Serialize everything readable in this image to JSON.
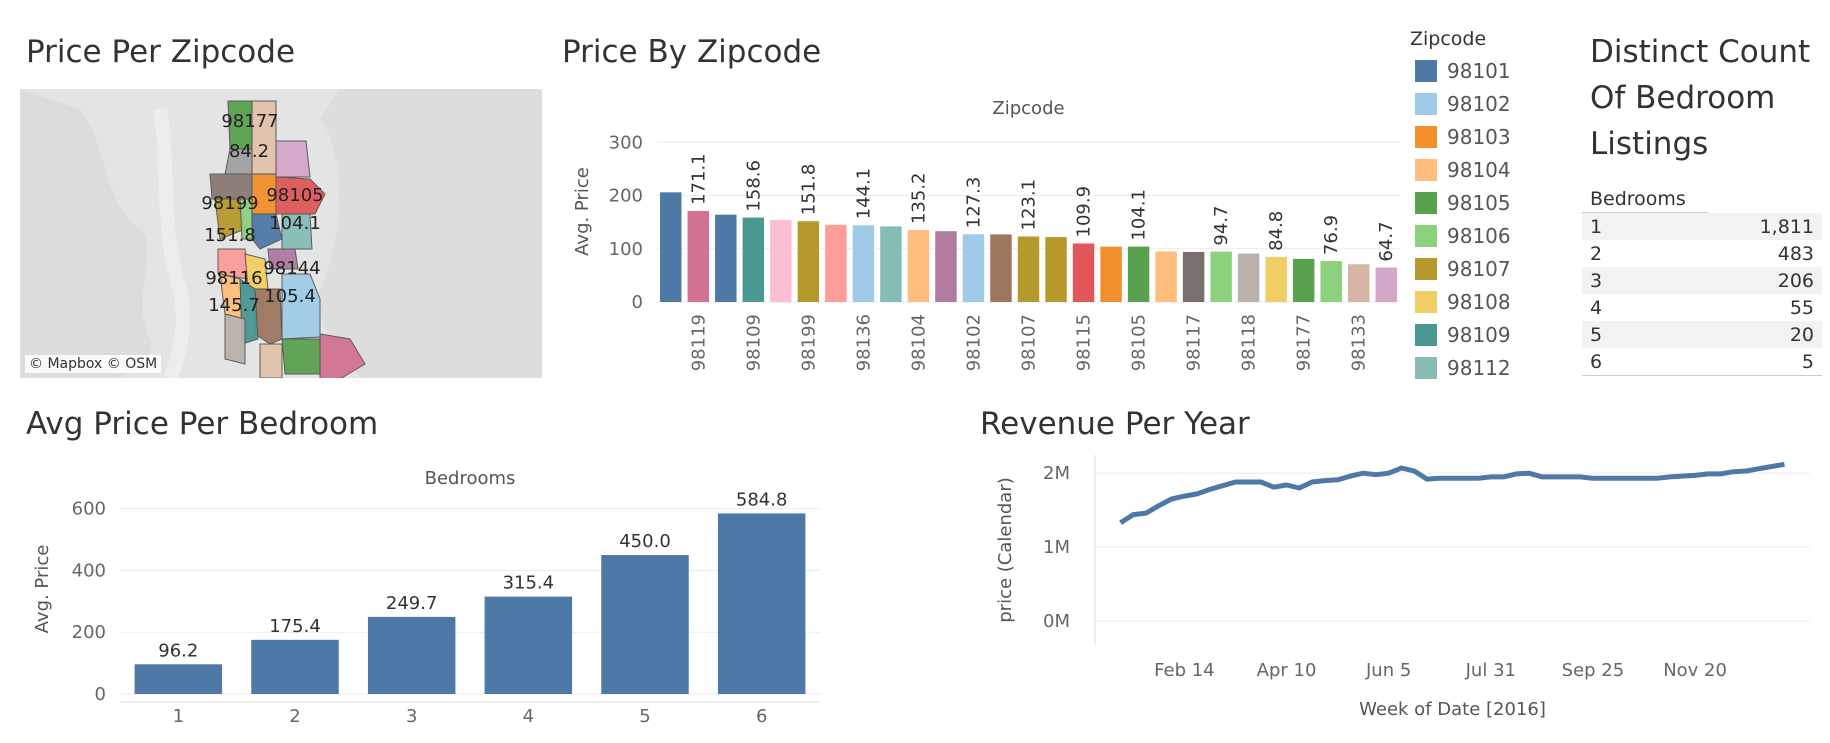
{
  "panels": {
    "map_title": "Price Per Zipcode",
    "bar_zip_title": "Price By Zipcode",
    "count_title_lines": [
      "Distinct Count",
      "Of Bedroom",
      "Listings"
    ],
    "bed_price_title": "Avg Price Per Bedroom",
    "revenue_title": "Revenue Per Year"
  },
  "map": {
    "attribution": "© Mapbox © OSM",
    "labels": [
      "98177",
      "84.2",
      "98105",
      "98199",
      "104.1",
      "151.8",
      "98116",
      "98144",
      "145.7",
      "105.4"
    ],
    "region_colors": [
      "#59a14f",
      "#e2c2ab",
      "#d4a6c8",
      "#a0a0a0",
      "#8a7a75",
      "#e15759",
      "#f28e2b",
      "#b6992d",
      "#8cd17d",
      "#4e79a7",
      "#86bcb6",
      "#ff9d9a",
      "#f1ce63",
      "#b07aa1",
      "#ffbe7d",
      "#9d7660",
      "#499894",
      "#a0cbe8",
      "#bab0ac",
      "#d37295"
    ]
  },
  "legend": {
    "title": "Zipcode",
    "items": [
      {
        "label": "98101",
        "color": "#4e79a7"
      },
      {
        "label": "98102",
        "color": "#a0cbe8"
      },
      {
        "label": "98103",
        "color": "#f28e2b"
      },
      {
        "label": "98104",
        "color": "#ffbe7d"
      },
      {
        "label": "98105",
        "color": "#59a14f"
      },
      {
        "label": "98106",
        "color": "#8cd17d"
      },
      {
        "label": "98107",
        "color": "#b6992d"
      },
      {
        "label": "98108",
        "color": "#f1ce63"
      },
      {
        "label": "98109",
        "color": "#499894"
      },
      {
        "label": "98112",
        "color": "#86bcb6"
      }
    ]
  },
  "bed_table": {
    "header": "Bedrooms",
    "rows": [
      {
        "bedrooms": "1",
        "count": "1,811"
      },
      {
        "bedrooms": "2",
        "count": "483"
      },
      {
        "bedrooms": "3",
        "count": "206"
      },
      {
        "bedrooms": "4",
        "count": "55"
      },
      {
        "bedrooms": "5",
        "count": "20"
      },
      {
        "bedrooms": "6",
        "count": "5"
      }
    ]
  },
  "chart_data": [
    {
      "id": "zip_bar",
      "type": "bar",
      "title": "Zipcode",
      "ylabel": "Avg. Price",
      "ylim": [
        0,
        340
      ],
      "yticks": [
        0,
        100,
        200,
        300
      ],
      "grid": true,
      "categories": [
        "",
        "98119",
        "",
        "98109",
        "",
        "98199",
        "",
        "98136",
        "",
        "98104",
        "",
        "98102",
        "",
        "98107",
        "",
        "98115",
        "",
        "98105",
        "",
        "98117",
        "",
        "98118",
        "",
        "98177",
        "",
        "98133",
        ""
      ],
      "values": [
        206,
        171.1,
        164,
        158.6,
        154,
        151.8,
        145,
        144.1,
        142,
        135.2,
        133,
        127.3,
        127,
        123.1,
        122,
        109.9,
        104,
        104.1,
        95,
        94,
        94.7,
        91,
        84.8,
        81,
        76.9,
        71,
        64.7
      ],
      "labels": [
        "",
        "171.1",
        "",
        "158.6",
        "",
        "151.8",
        "",
        "144.1",
        "",
        "135.2",
        "",
        "127.3",
        "",
        "123.1",
        "",
        "109.9",
        "",
        "104.1",
        "",
        "",
        "94.7",
        "",
        "84.8",
        "",
        "76.9",
        "",
        "64.7"
      ],
      "colors": [
        "#4e79a7",
        "#d37295",
        "#4e79a7",
        "#499894",
        "#fabfd2",
        "#b6992d",
        "#ff9d9a",
        "#a0cbe8",
        "#86bcb6",
        "#ffbe7d",
        "#b07aa1",
        "#a0cbe8",
        "#9d7660",
        "#b6992d",
        "#b6992d",
        "#e15759",
        "#f28e2b",
        "#59a14f",
        "#ffbe7d",
        "#79706e",
        "#8cd17d",
        "#bab0ac",
        "#f1ce63",
        "#59a14f",
        "#8cd17d",
        "#d7b5a6",
        "#d4a6c8"
      ]
    },
    {
      "id": "bed_bar",
      "type": "bar",
      "title": "Bedrooms",
      "ylabel": "Avg. Price",
      "ylim": [
        0,
        680
      ],
      "yticks": [
        0,
        200,
        400,
        600
      ],
      "grid": true,
      "categories": [
        "1",
        "2",
        "3",
        "4",
        "5",
        "6"
      ],
      "values": [
        96.2,
        175.4,
        249.7,
        315.4,
        450.0,
        584.8
      ],
      "labels": [
        "96.2",
        "175.4",
        "249.7",
        "315.4",
        "450.0",
        "584.8"
      ],
      "color": "#4e79a7"
    },
    {
      "id": "revenue_line",
      "type": "line",
      "xlabel": "Week of Date [2016]",
      "ylabel": "price (Calendar)",
      "ylim": [
        0,
        2300000
      ],
      "yticks": [
        0,
        1000000,
        2000000
      ],
      "ytick_labels": [
        "0M",
        "1M",
        "2M"
      ],
      "xtick_weeks": [
        6,
        14,
        22,
        30,
        38,
        46
      ],
      "xtick_labels": [
        "Feb 14",
        "Apr 10",
        "Jun 5",
        "Jul 31",
        "Sep 25",
        "Nov 20"
      ],
      "xlim": [
        -1,
        55
      ],
      "grid": true,
      "color": "#4e79a7",
      "x": [
        1,
        2,
        3,
        4,
        5,
        6,
        7,
        8,
        9,
        10,
        11,
        12,
        13,
        14,
        15,
        16,
        17,
        18,
        19,
        20,
        21,
        22,
        23,
        24,
        25,
        26,
        27,
        28,
        29,
        30,
        31,
        32,
        33,
        34,
        35,
        36,
        37,
        38,
        39,
        40,
        41,
        42,
        43,
        44,
        45,
        46,
        47,
        48,
        49,
        50,
        51,
        52,
        53
      ],
      "y": [
        1330000,
        1440000,
        1460000,
        1560000,
        1650000,
        1690000,
        1720000,
        1780000,
        1830000,
        1880000,
        1880000,
        1880000,
        1810000,
        1840000,
        1800000,
        1880000,
        1900000,
        1910000,
        1960000,
        2000000,
        1980000,
        2000000,
        2070000,
        2030000,
        1920000,
        1930000,
        1930000,
        1930000,
        1930000,
        1950000,
        1950000,
        1990000,
        2000000,
        1950000,
        1950000,
        1950000,
        1950000,
        1930000,
        1930000,
        1930000,
        1930000,
        1930000,
        1930000,
        1950000,
        1960000,
        1970000,
        1990000,
        1990000,
        2020000,
        2030000,
        2060000,
        2090000,
        2120000
      ]
    }
  ]
}
